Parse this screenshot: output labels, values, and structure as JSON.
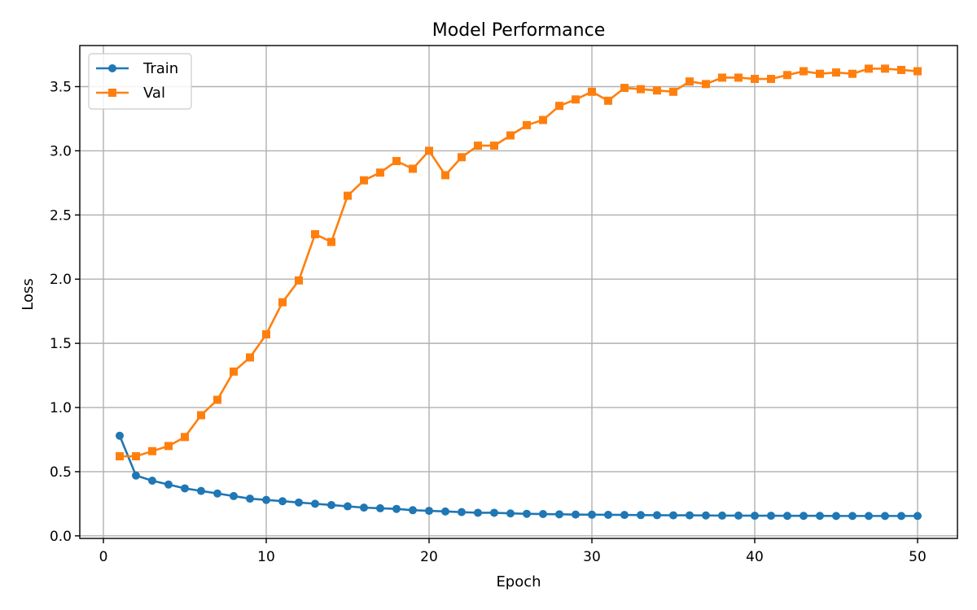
{
  "chart_data": {
    "type": "line",
    "title": "Model Performance",
    "xlabel": "Epoch",
    "ylabel": "Loss",
    "xlim": [
      -1.45,
      52.45
    ],
    "ylim": [
      -0.02,
      3.82
    ],
    "xticks": [
      0,
      10,
      20,
      30,
      40,
      50
    ],
    "yticks": [
      0.0,
      0.5,
      1.0,
      1.5,
      2.0,
      2.5,
      3.0,
      3.5
    ],
    "xtick_labels": [
      "0",
      "10",
      "20",
      "30",
      "40",
      "50"
    ],
    "ytick_labels": [
      "0.0",
      "0.5",
      "1.0",
      "1.5",
      "2.0",
      "2.5",
      "3.0",
      "3.5"
    ],
    "grid": true,
    "legend_position": "top-left",
    "x": [
      1,
      2,
      3,
      4,
      5,
      6,
      7,
      8,
      9,
      10,
      11,
      12,
      13,
      14,
      15,
      16,
      17,
      18,
      19,
      20,
      21,
      22,
      23,
      24,
      25,
      26,
      27,
      28,
      29,
      30,
      31,
      32,
      33,
      34,
      35,
      36,
      37,
      38,
      39,
      40,
      41,
      42,
      43,
      44,
      45,
      46,
      47,
      48,
      49,
      50
    ],
    "series": [
      {
        "name": "Train",
        "color": "#1f77b4",
        "marker": "circle",
        "values": [
          0.78,
          0.47,
          0.43,
          0.4,
          0.37,
          0.35,
          0.33,
          0.31,
          0.29,
          0.28,
          0.27,
          0.26,
          0.25,
          0.24,
          0.23,
          0.22,
          0.215,
          0.21,
          0.2,
          0.195,
          0.19,
          0.185,
          0.18,
          0.18,
          0.175,
          0.172,
          0.17,
          0.168,
          0.166,
          0.165,
          0.164,
          0.163,
          0.162,
          0.161,
          0.16,
          0.16,
          0.159,
          0.158,
          0.158,
          0.157,
          0.157,
          0.156,
          0.156,
          0.156,
          0.155,
          0.155,
          0.155,
          0.155,
          0.155,
          0.155
        ]
      },
      {
        "name": "Val",
        "color": "#ff7f0e",
        "marker": "square",
        "values": [
          0.62,
          0.62,
          0.66,
          0.7,
          0.77,
          0.94,
          1.06,
          1.28,
          1.39,
          1.57,
          1.82,
          1.99,
          2.35,
          2.29,
          2.65,
          2.77,
          2.83,
          2.92,
          2.86,
          3.0,
          2.81,
          2.95,
          3.04,
          3.04,
          3.12,
          3.2,
          3.24,
          3.35,
          3.4,
          3.46,
          3.39,
          3.49,
          3.48,
          3.47,
          3.46,
          3.54,
          3.52,
          3.57,
          3.57,
          3.56,
          3.56,
          3.59,
          3.62,
          3.6,
          3.61,
          3.6,
          3.64,
          3.64,
          3.63,
          3.62
        ]
      }
    ]
  }
}
